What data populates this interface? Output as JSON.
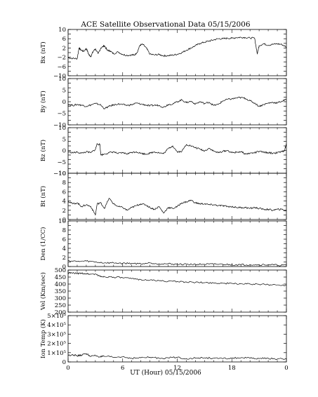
{
  "chart_data": {
    "title": "ACE Satellite Observational Data   05/15/2006",
    "xlabel": "UT (Hour)   05/15/2006",
    "x_ticks": [
      "0",
      "6",
      "12",
      "18",
      "0"
    ],
    "xlim_hours": [
      0,
      24
    ],
    "panels": [
      {
        "type": "line",
        "ylabel": "Bx (nT)",
        "ylim": [
          -10,
          10
        ],
        "y_ticks": [
          "-10",
          "-8",
          "-6",
          "-4",
          "-2",
          "0",
          "2",
          "4",
          "6",
          "8",
          "10"
        ],
        "tick_labels_shown": [
          "−10",
          "−6",
          "−2",
          "2",
          "6",
          "10"
        ],
        "hours": [
          0,
          0.5,
          1,
          1.2,
          1.4,
          1.7,
          2,
          2.3,
          2.5,
          2.8,
          3,
          3.3,
          3.6,
          4,
          4.3,
          4.6,
          5,
          5.5,
          6,
          6.5,
          7,
          7.3,
          7.6,
          7.9,
          8.2,
          8.6,
          9,
          9.5,
          10,
          10.5,
          11,
          11.5,
          12,
          12.5,
          13,
          13.5,
          14,
          14.5,
          15,
          15.5,
          16,
          16.5,
          17,
          17.5,
          18,
          18.5,
          19,
          19.5,
          20,
          20.5,
          20.8,
          21,
          21.5,
          22,
          22.5,
          23,
          23.5,
          24
        ],
        "values": [
          -2.2,
          -2.5,
          -2.6,
          2.0,
          1.2,
          0.5,
          1.8,
          -1.0,
          -1.6,
          0.8,
          1.6,
          -0.5,
          2.0,
          3.0,
          1.0,
          0.8,
          -0.5,
          0.3,
          -0.8,
          -1.2,
          -1.0,
          -1.0,
          0.2,
          3.2,
          3.6,
          2.0,
          -0.7,
          -1.0,
          -0.8,
          -1.4,
          -1.3,
          -1.1,
          -0.7,
          0.0,
          1.0,
          2.0,
          3.0,
          4.0,
          4.5,
          5.0,
          5.5,
          6.0,
          6.0,
          6.2,
          6.2,
          6.5,
          6.6,
          6.5,
          6.3,
          6.3,
          -0.5,
          3.0,
          3.8,
          3.2,
          3.6,
          3.8,
          3.5,
          2.4
        ]
      },
      {
        "type": "line",
        "ylabel": "By (nT)",
        "ylim": [
          -10,
          10
        ],
        "y_ticks": [
          "-10",
          "-8",
          "-6",
          "-4",
          "-2",
          "0",
          "2",
          "4",
          "6",
          "8",
          "10"
        ],
        "tick_labels_shown": [
          "−10",
          "−5",
          "0",
          "5",
          "10"
        ],
        "hours": [
          0,
          0.5,
          1,
          1.5,
          2,
          2.5,
          3,
          3.5,
          4,
          4.5,
          5,
          5.5,
          6,
          6.5,
          7,
          7.5,
          8,
          8.5,
          9,
          9.5,
          10,
          10.5,
          11,
          11.5,
          12,
          12.5,
          13,
          13.5,
          14,
          14.5,
          15,
          15.5,
          16,
          16.5,
          17,
          17.5,
          18,
          18.5,
          19,
          19.5,
          20,
          20.5,
          21,
          21.5,
          22,
          22.5,
          23,
          23.5,
          24
        ],
        "values": [
          -1.0,
          -1.6,
          -1.2,
          -1.5,
          -2.0,
          -1.4,
          -0.8,
          -1.2,
          -3.0,
          -2.0,
          -1.4,
          -1.0,
          -1.2,
          -1.6,
          -1.3,
          -0.6,
          -1.0,
          -1.4,
          -1.8,
          -1.5,
          -1.6,
          -2.4,
          -1.2,
          -1.0,
          0.0,
          0.8,
          -0.4,
          0.2,
          -1.0,
          0.0,
          -0.8,
          -0.2,
          -1.6,
          -1.2,
          0.3,
          1.0,
          1.2,
          1.6,
          1.8,
          1.4,
          0.4,
          -0.6,
          -2.0,
          -1.2,
          -0.6,
          -0.3,
          -0.5,
          0.2,
          1.0
        ]
      },
      {
        "type": "line",
        "ylabel": "Bz (nT)",
        "ylim": [
          -10,
          10
        ],
        "y_ticks": [
          "-10",
          "-8",
          "-6",
          "-4",
          "-2",
          "0",
          "2",
          "4",
          "6",
          "8",
          "10"
        ],
        "tick_labels_shown": [
          "−10",
          "−5",
          "0",
          "5",
          "10"
        ],
        "hours": [
          0,
          0.5,
          1,
          1.5,
          2,
          2.5,
          3,
          3.2,
          3.5,
          3.6,
          4,
          4.5,
          5,
          5.5,
          6,
          6.5,
          7,
          7.5,
          8,
          8.5,
          9,
          9.5,
          10,
          10.5,
          11,
          11.5,
          12,
          12.5,
          13,
          13.5,
          14,
          14.5,
          15,
          15.5,
          16,
          16.5,
          17,
          17.5,
          18,
          18.5,
          19,
          19.5,
          20,
          20.5,
          21,
          21.5,
          22,
          22.5,
          23,
          23.5,
          23.8,
          24
        ],
        "values": [
          -0.5,
          -1.0,
          -0.8,
          -1.2,
          -0.6,
          -1.0,
          0.5,
          3.0,
          2.5,
          -2.0,
          -1.6,
          -1.0,
          -0.6,
          -1.4,
          -1.0,
          -1.5,
          -0.8,
          -0.6,
          -1.2,
          -1.6,
          -1.2,
          -0.6,
          -1.0,
          -1.4,
          0.8,
          2.0,
          -0.6,
          -0.4,
          2.6,
          2.0,
          1.2,
          0.6,
          -0.2,
          1.0,
          -0.3,
          -1.0,
          -0.4,
          0.0,
          -1.0,
          -0.8,
          -0.5,
          -1.6,
          -1.2,
          -1.0,
          -0.4,
          -0.8,
          -1.0,
          -1.2,
          -1.0,
          -0.6,
          0.0,
          3.0
        ]
      },
      {
        "type": "line",
        "ylabel": "Bt (nT)",
        "ylim": [
          0,
          10
        ],
        "y_ticks": [
          "0",
          "1",
          "2",
          "3",
          "4",
          "5",
          "6",
          "7",
          "8",
          "9",
          "10"
        ],
        "tick_labels_shown": [
          "0",
          "2",
          "4",
          "6",
          "8",
          "10"
        ],
        "hours": [
          0,
          0.5,
          1,
          1.5,
          2,
          2.5,
          3,
          3.2,
          3.6,
          4,
          4.5,
          5,
          5.5,
          6,
          6.5,
          7,
          7.5,
          8,
          8.5,
          9,
          9.5,
          10,
          10.5,
          11,
          11.5,
          12,
          12.5,
          13,
          13.5,
          14,
          14.5,
          15,
          15.5,
          16,
          16.5,
          17,
          17.5,
          18,
          18.5,
          19,
          19.5,
          20,
          20.5,
          21,
          21.5,
          22,
          22.5,
          23,
          23.5,
          24
        ],
        "values": [
          4.0,
          3.4,
          3.6,
          2.8,
          3.2,
          2.8,
          1.0,
          3.4,
          3.6,
          2.4,
          4.6,
          3.4,
          2.8,
          2.6,
          2.0,
          2.6,
          3.0,
          3.4,
          3.2,
          2.6,
          2.2,
          2.8,
          1.4,
          2.6,
          2.4,
          2.8,
          3.6,
          3.8,
          4.2,
          3.6,
          3.4,
          3.4,
          3.2,
          3.2,
          3.0,
          3.0,
          2.8,
          2.8,
          2.6,
          2.6,
          2.6,
          2.4,
          2.6,
          2.4,
          2.2,
          2.2,
          2.0,
          2.2,
          2.2,
          1.8
        ]
      },
      {
        "type": "line",
        "ylabel": "Den (1/CC)",
        "ylim": [
          0,
          10
        ],
        "y_ticks": [
          "0",
          "1",
          "2",
          "3",
          "4",
          "5",
          "6",
          "7",
          "8",
          "9",
          "10"
        ],
        "tick_labels_shown": [
          "0",
          "2",
          "4",
          "6",
          "8",
          "10"
        ],
        "hours": [
          0,
          1,
          2,
          3,
          4,
          5,
          6,
          7,
          8,
          9,
          10,
          11,
          12,
          13,
          14,
          15,
          16,
          17,
          18,
          19,
          20,
          21,
          22,
          23,
          24
        ],
        "values": [
          1.3,
          1.1,
          1.2,
          1.0,
          0.8,
          0.8,
          0.7,
          0.7,
          0.6,
          0.8,
          0.6,
          0.6,
          0.5,
          0.5,
          0.5,
          0.5,
          0.5,
          0.5,
          0.4,
          0.4,
          0.4,
          0.4,
          0.4,
          0.3,
          0.3
        ]
      },
      {
        "type": "line",
        "ylabel": "Vel (Km/sec)",
        "ylim": [
          200,
          500
        ],
        "y_ticks": [
          "200",
          "250",
          "300",
          "350",
          "400",
          "450",
          "500"
        ],
        "tick_labels_shown": [
          "200",
          "250",
          "300",
          "350",
          "400",
          "450",
          "500"
        ],
        "hours": [
          0,
          0.5,
          1,
          1.5,
          2,
          2.5,
          3,
          3.5,
          4,
          5,
          6,
          7,
          8,
          9,
          10,
          11,
          12,
          13,
          14,
          15,
          16,
          17,
          18,
          19,
          20,
          21,
          22,
          23,
          24
        ],
        "values": [
          480,
          478,
          476,
          476,
          474,
          470,
          472,
          455,
          452,
          450,
          445,
          438,
          432,
          428,
          424,
          420,
          418,
          415,
          412,
          410,
          408,
          406,
          404,
          402,
          400,
          398,
          396,
          394,
          392
        ]
      },
      {
        "type": "line",
        "ylabel": "Ion Temp (K)",
        "ylim": [
          0,
          500000
        ],
        "y_ticks": [
          "0",
          "1x10^5",
          "2x10^5",
          "3x10^5",
          "4x10^5",
          "5x10^5"
        ],
        "tick_labels_shown": [
          "0",
          "1×10⁵",
          "2×10⁵",
          "3×10⁵",
          "4×10⁵",
          "5×10⁵"
        ],
        "hours": [
          0,
          0.5,
          1,
          1.5,
          2,
          2.5,
          3,
          3.5,
          4,
          5,
          6,
          7,
          8,
          9,
          10,
          11,
          12,
          13,
          14,
          15,
          16,
          17,
          18,
          19,
          20,
          21,
          22,
          23,
          24
        ],
        "values": [
          70000,
          80000,
          65000,
          75000,
          90000,
          60000,
          70000,
          55000,
          60000,
          50000,
          55000,
          40000,
          45000,
          50000,
          40000,
          45000,
          50000,
          35000,
          40000,
          45000,
          40000,
          35000,
          40000,
          45000,
          40000,
          35000,
          40000,
          30000,
          35000
        ]
      }
    ],
    "grid": false,
    "legend": "none",
    "line_color": "#000000"
  }
}
